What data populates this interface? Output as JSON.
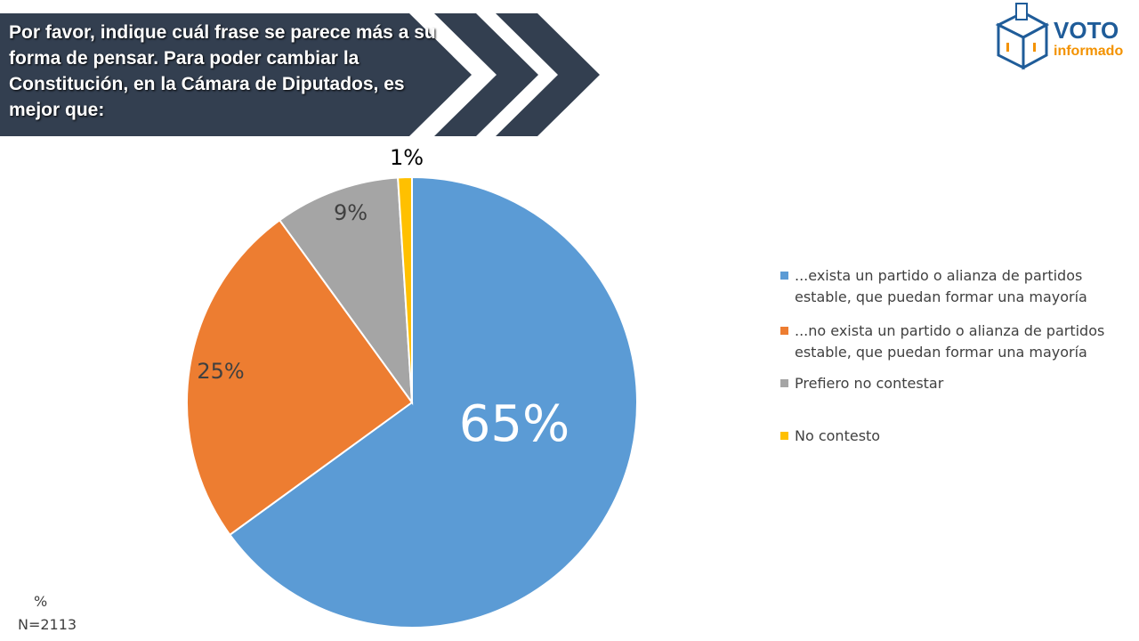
{
  "chart_data": {
    "type": "pie",
    "title": "Por favor, indique cuál frase se parece más a su forma de pensar. Para poder cambiar la Constitución, en la Cámara de Diputados, es mejor que:",
    "series": [
      {
        "name": "...exista un partido o alianza de partidos estable, que puedan formar una mayoría",
        "color": "#5b9bd5"
      },
      {
        "name": "...no exista un partido o alianza de partidos estable, que puedan formar una mayoría",
        "color": "#ed7d31"
      },
      {
        "name": "Prefiero no contestar",
        "color": "#a5a5a5"
      },
      {
        "name": "No contesto",
        "color": "#ffc000"
      }
    ],
    "values": [
      65,
      25,
      9,
      1
    ],
    "value_labels": [
      "65%",
      "25%",
      "9%",
      "1%"
    ],
    "notes": [
      "%",
      "N=2113"
    ]
  },
  "logo": {
    "title": "VOTO",
    "subtitle": "informado"
  }
}
